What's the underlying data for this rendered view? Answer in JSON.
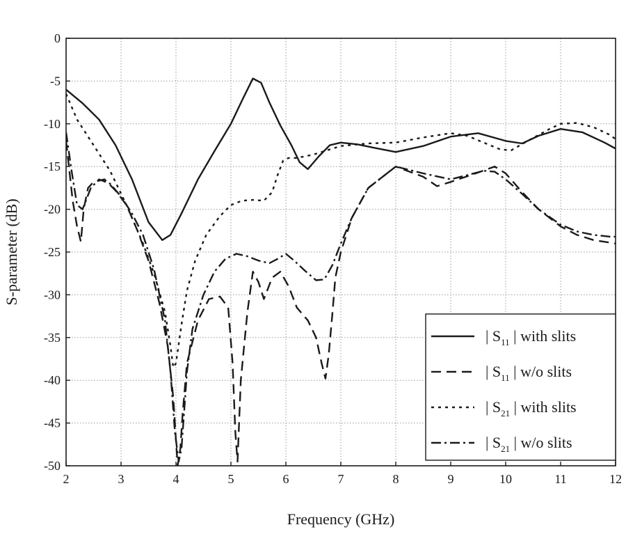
{
  "chart_data": {
    "type": "line",
    "xlabel": "Frequency (GHz)",
    "ylabel": "S-parameter (dB)",
    "xlim": [
      2,
      12
    ],
    "ylim": [
      -50,
      0
    ],
    "x_ticks": [
      2,
      3,
      4,
      5,
      6,
      7,
      8,
      9,
      10,
      11,
      12
    ],
    "y_ticks": [
      0,
      -5,
      -10,
      -15,
      -20,
      -25,
      -30,
      -35,
      -40,
      -45,
      -50
    ],
    "grid": true,
    "legend_position": "bottom-right",
    "series": [
      {
        "name": "| S11 | with slits",
        "legend": {
          "pre": "| S",
          "sub": "11",
          "post": " | with slits"
        },
        "style": "solid",
        "x": [
          2.0,
          2.3,
          2.6,
          2.9,
          3.2,
          3.5,
          3.75,
          3.9,
          4.1,
          4.4,
          4.7,
          5.0,
          5.2,
          5.4,
          5.55,
          5.7,
          5.9,
          6.1,
          6.25,
          6.4,
          6.6,
          6.8,
          7.0,
          7.3,
          7.6,
          8.0,
          8.5,
          9.0,
          9.5,
          10.0,
          10.3,
          10.6,
          11.0,
          11.4,
          11.8,
          12.0
        ],
        "y": [
          -6.0,
          -7.6,
          -9.5,
          -12.5,
          -16.5,
          -21.5,
          -23.6,
          -23.0,
          -20.5,
          -16.5,
          -13.2,
          -10.0,
          -7.3,
          -4.7,
          -5.2,
          -7.5,
          -10.2,
          -12.5,
          -14.5,
          -15.3,
          -13.8,
          -12.5,
          -12.2,
          -12.4,
          -12.8,
          -13.3,
          -12.6,
          -11.5,
          -11.1,
          -12.0,
          -12.3,
          -11.4,
          -10.6,
          -11.0,
          -12.2,
          -12.9
        ]
      },
      {
        "name": "| S11 | w/o slits",
        "legend": {
          "pre": "| S",
          "sub": "11",
          "post": " | w/o slits"
        },
        "style": "dashed",
        "x": [
          2.0,
          2.12,
          2.2,
          2.27,
          2.32,
          2.4,
          2.5,
          2.7,
          2.9,
          3.1,
          3.3,
          3.5,
          3.7,
          3.85,
          3.95,
          4.0,
          4.03,
          4.08,
          4.12,
          4.2,
          4.4,
          4.6,
          4.8,
          4.95,
          5.03,
          5.08,
          5.12,
          5.18,
          5.3,
          5.4,
          5.5,
          5.6,
          5.75,
          5.9,
          6.05,
          6.2,
          6.4,
          6.55,
          6.65,
          6.72,
          6.78,
          6.85,
          6.9,
          7.0,
          7.2,
          7.5,
          8.0,
          8.5,
          8.75,
          9.0,
          9.5,
          9.8,
          10.0,
          10.3,
          10.6,
          11.0,
          11.3,
          11.6,
          11.9,
          12.0
        ],
        "y": [
          -12.0,
          -19.0,
          -22.0,
          -23.8,
          -20.0,
          -17.5,
          -16.8,
          -16.5,
          -17.8,
          -19.5,
          -22.5,
          -26.0,
          -31.0,
          -36.0,
          -42.0,
          -47.0,
          -50.0,
          -48.0,
          -44.0,
          -38.0,
          -33.0,
          -30.5,
          -30.2,
          -31.5,
          -38.0,
          -46.0,
          -49.5,
          -40.0,
          -32.0,
          -27.3,
          -28.5,
          -30.5,
          -28.0,
          -27.3,
          -29.0,
          -31.5,
          -33.0,
          -35.0,
          -38.0,
          -39.8,
          -37.0,
          -32.0,
          -28.0,
          -25.0,
          -21.0,
          -17.5,
          -15.0,
          -16.2,
          -17.3,
          -16.8,
          -15.7,
          -15.0,
          -15.8,
          -18.0,
          -20.0,
          -22.0,
          -23.0,
          -23.6,
          -23.9,
          -24.0
        ]
      },
      {
        "name": "| S21 | with slits",
        "legend": {
          "pre": "| S",
          "sub": "21",
          "post": " | with slits"
        },
        "style": "dotted",
        "x": [
          2.0,
          2.2,
          2.5,
          2.8,
          3.1,
          3.4,
          3.6,
          3.8,
          3.9,
          3.95,
          4.0,
          4.1,
          4.2,
          4.35,
          4.55,
          4.8,
          5.0,
          5.2,
          5.4,
          5.6,
          5.75,
          5.85,
          5.95,
          6.05,
          6.2,
          6.5,
          6.8,
          7.0,
          7.5,
          8.0,
          8.5,
          9.0,
          9.3,
          9.6,
          9.9,
          10.1,
          10.4,
          10.8,
          11.0,
          11.3,
          11.6,
          11.9,
          12.0
        ],
        "y": [
          -6.5,
          -9.5,
          -12.5,
          -15.5,
          -19.5,
          -24.0,
          -27.5,
          -32.0,
          -36.0,
          -38.5,
          -38.0,
          -33.5,
          -29.5,
          -26.0,
          -23.0,
          -20.8,
          -19.5,
          -19.0,
          -18.9,
          -19.0,
          -18.0,
          -16.0,
          -14.3,
          -14.0,
          -14.0,
          -13.6,
          -13.0,
          -12.6,
          -12.3,
          -12.2,
          -11.6,
          -11.1,
          -11.4,
          -12.2,
          -13.0,
          -13.1,
          -12.0,
          -10.6,
          -10.0,
          -9.9,
          -10.4,
          -11.3,
          -11.8
        ]
      },
      {
        "name": "| S21 | w/o slits",
        "legend": {
          "pre": "| S",
          "sub": "21",
          "post": " | w/o slits"
        },
        "style": "dashdot",
        "x": [
          2.0,
          2.1,
          2.2,
          2.3,
          2.45,
          2.6,
          2.8,
          3.0,
          3.2,
          3.4,
          3.6,
          3.8,
          3.9,
          3.98,
          4.05,
          4.1,
          4.15,
          4.2,
          4.3,
          4.5,
          4.7,
          4.9,
          5.1,
          5.3,
          5.5,
          5.7,
          5.85,
          6.0,
          6.15,
          6.35,
          6.55,
          6.7,
          6.85,
          7.0,
          7.2,
          7.5,
          8.0,
          8.5,
          9.0,
          9.3,
          9.6,
          9.8,
          10.0,
          10.3,
          10.6,
          11.0,
          11.3,
          11.6,
          11.9,
          12.0
        ],
        "y": [
          -11.0,
          -15.5,
          -19.5,
          -20.0,
          -17.5,
          -16.5,
          -17.0,
          -18.5,
          -20.5,
          -23.0,
          -27.0,
          -33.0,
          -39.0,
          -46.0,
          -49.5,
          -48.0,
          -43.5,
          -39.0,
          -34.0,
          -30.0,
          -27.3,
          -25.8,
          -25.2,
          -25.5,
          -26.0,
          -26.3,
          -25.8,
          -25.2,
          -26.0,
          -27.2,
          -28.3,
          -28.2,
          -26.5,
          -24.0,
          -21.0,
          -17.5,
          -15.0,
          -15.8,
          -16.5,
          -16.0,
          -15.5,
          -15.6,
          -16.5,
          -18.2,
          -20.0,
          -21.8,
          -22.6,
          -23.0,
          -23.2,
          -23.2
        ]
      }
    ]
  }
}
